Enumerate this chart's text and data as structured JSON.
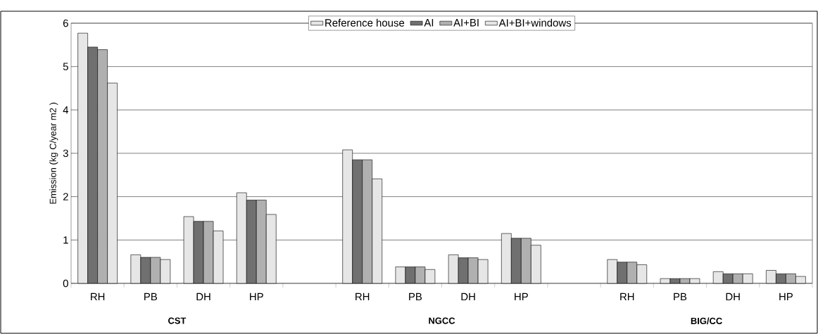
{
  "chart_data": {
    "type": "bar",
    "ylabel": "Emission (kg C/year m2 )",
    "categories": [
      "RH",
      "PB",
      "DH",
      "HP",
      null,
      "RH",
      "PB",
      "DH",
      "HP",
      null,
      "RH",
      "PB",
      "DH",
      "HP"
    ],
    "series": [
      {
        "name": "Reference house",
        "color": "#e6e6e6",
        "values": [
          5.77,
          0.66,
          1.54,
          2.09,
          null,
          3.08,
          0.38,
          0.66,
          1.15,
          null,
          0.55,
          0.11,
          0.27,
          0.3
        ]
      },
      {
        "name": "AI",
        "color": "#707070",
        "values": [
          5.45,
          0.6,
          1.43,
          1.92,
          null,
          2.85,
          0.38,
          0.59,
          1.04,
          null,
          0.49,
          0.11,
          0.22,
          0.22
        ]
      },
      {
        "name": "AI+BI",
        "color": "#b0b0b0",
        "values": [
          5.39,
          0.6,
          1.43,
          1.92,
          null,
          2.85,
          0.38,
          0.59,
          1.04,
          null,
          0.49,
          0.11,
          0.22,
          0.22
        ]
      },
      {
        "name": "AI+BI+windows",
        "color": "#e6e6e6",
        "values": [
          4.62,
          0.55,
          1.21,
          1.59,
          null,
          2.41,
          0.32,
          0.55,
          0.88,
          null,
          0.43,
          0.11,
          0.22,
          0.16
        ]
      }
    ],
    "ylim": [
      0,
      6
    ],
    "yticks": [
      0,
      1,
      2,
      3,
      4,
      5,
      6
    ],
    "grid": "y",
    "legend": "top",
    "annotations": [
      "CST",
      "NGCC",
      "BIG/CC"
    ]
  }
}
